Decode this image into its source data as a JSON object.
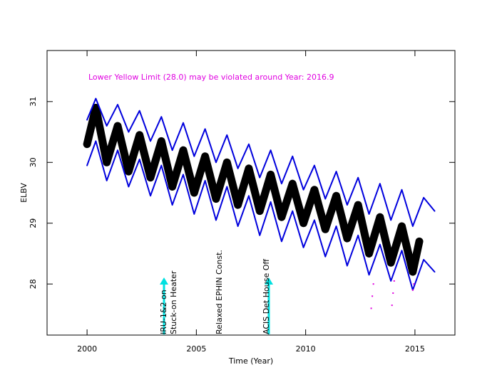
{
  "chart_data": {
    "type": "scatter",
    "title": "Lower Yellow  Limit (28.0) may be violated around Year: 2016.9",
    "x_label": "Time (Year)",
    "y_label": "ELBV",
    "xlim": [
      1998.17,
      2016.83
    ],
    "ylim": [
      27.16,
      31.84
    ],
    "xticks": [
      2000,
      2005,
      2010,
      2015
    ],
    "yticks": [
      28,
      29,
      30,
      31
    ],
    "series": [
      {
        "color": "#000000",
        "style": "band",
        "x": [
          2000.0,
          2000.4,
          2000.9,
          2001.4,
          2001.9,
          2002.4,
          2002.9,
          2003.4,
          2003.9,
          2004.4,
          2004.9,
          2005.4,
          2005.9,
          2006.4,
          2006.9,
          2007.4,
          2007.9,
          2008.4,
          2008.9,
          2009.4,
          2009.9,
          2010.4,
          2010.9,
          2011.4,
          2011.9,
          2012.4,
          2012.9,
          2013.4,
          2013.9,
          2014.4,
          2014.9,
          2015.2
        ],
        "values": [
          30.3,
          30.9,
          30.0,
          30.6,
          29.85,
          30.45,
          29.75,
          30.35,
          29.6,
          30.2,
          29.5,
          30.1,
          29.4,
          30.0,
          29.3,
          29.9,
          29.2,
          29.8,
          29.1,
          29.65,
          29.0,
          29.55,
          28.9,
          29.45,
          28.75,
          29.3,
          28.5,
          29.1,
          28.35,
          28.95,
          28.2,
          28.7
        ]
      },
      {
        "color": "#0000dd",
        "style": "line",
        "x": [
          2000.0,
          2000.4,
          2000.9,
          2001.4,
          2001.9,
          2002.4,
          2002.9,
          2003.4,
          2003.9,
          2004.4,
          2004.9,
          2005.4,
          2005.9,
          2006.4,
          2006.9,
          2007.4,
          2007.9,
          2008.4,
          2008.9,
          2009.4,
          2009.9,
          2010.4,
          2010.9,
          2011.4,
          2011.9,
          2012.4,
          2012.9,
          2013.4,
          2013.9,
          2014.4,
          2014.9,
          2015.4,
          2015.9
        ],
        "values": [
          30.7,
          31.05,
          30.6,
          30.95,
          30.5,
          30.85,
          30.35,
          30.75,
          30.2,
          30.65,
          30.1,
          30.55,
          30.0,
          30.45,
          29.9,
          30.3,
          29.75,
          30.2,
          29.65,
          30.1,
          29.55,
          29.95,
          29.4,
          29.85,
          29.3,
          29.75,
          29.15,
          29.65,
          29.05,
          29.55,
          28.95,
          29.42,
          29.2
        ]
      },
      {
        "color": "#0000dd",
        "style": "line",
        "x": [
          2000.0,
          2000.4,
          2000.9,
          2001.4,
          2001.9,
          2002.4,
          2002.9,
          2003.4,
          2003.9,
          2004.4,
          2004.9,
          2005.4,
          2005.9,
          2006.4,
          2006.9,
          2007.4,
          2007.9,
          2008.4,
          2008.9,
          2009.4,
          2009.9,
          2010.4,
          2010.9,
          2011.4,
          2011.9,
          2012.4,
          2012.9,
          2013.4,
          2013.9,
          2014.4,
          2014.9,
          2015.4,
          2015.9
        ],
        "values": [
          29.95,
          30.35,
          29.7,
          30.2,
          29.6,
          30.05,
          29.45,
          29.95,
          29.3,
          29.8,
          29.15,
          29.7,
          29.05,
          29.6,
          28.95,
          29.45,
          28.8,
          29.35,
          28.7,
          29.2,
          28.6,
          29.05,
          28.45,
          28.95,
          28.3,
          28.8,
          28.15,
          28.65,
          28.05,
          28.55,
          27.9,
          28.4,
          28.2
        ]
      },
      {
        "color": "#e000e0",
        "style": "points",
        "x": [
          2013.0,
          2013.05,
          2013.1,
          2013.95,
          2014.0,
          2014.05,
          2014.9,
          2014.95
        ],
        "values": [
          27.6,
          27.8,
          28.0,
          27.65,
          27.85,
          28.05,
          27.9,
          28.0
        ]
      }
    ],
    "annotations": [
      {
        "text": "IRU-1&2 on",
        "x": 2003.49
      },
      {
        "text": "Stuck-on Heater",
        "x": 2003.95
      },
      {
        "text": "Relaxed EPHIN Const.",
        "x": 2006.03
      },
      {
        "text": "ACIS Det House Off",
        "x": 2008.19
      }
    ]
  }
}
